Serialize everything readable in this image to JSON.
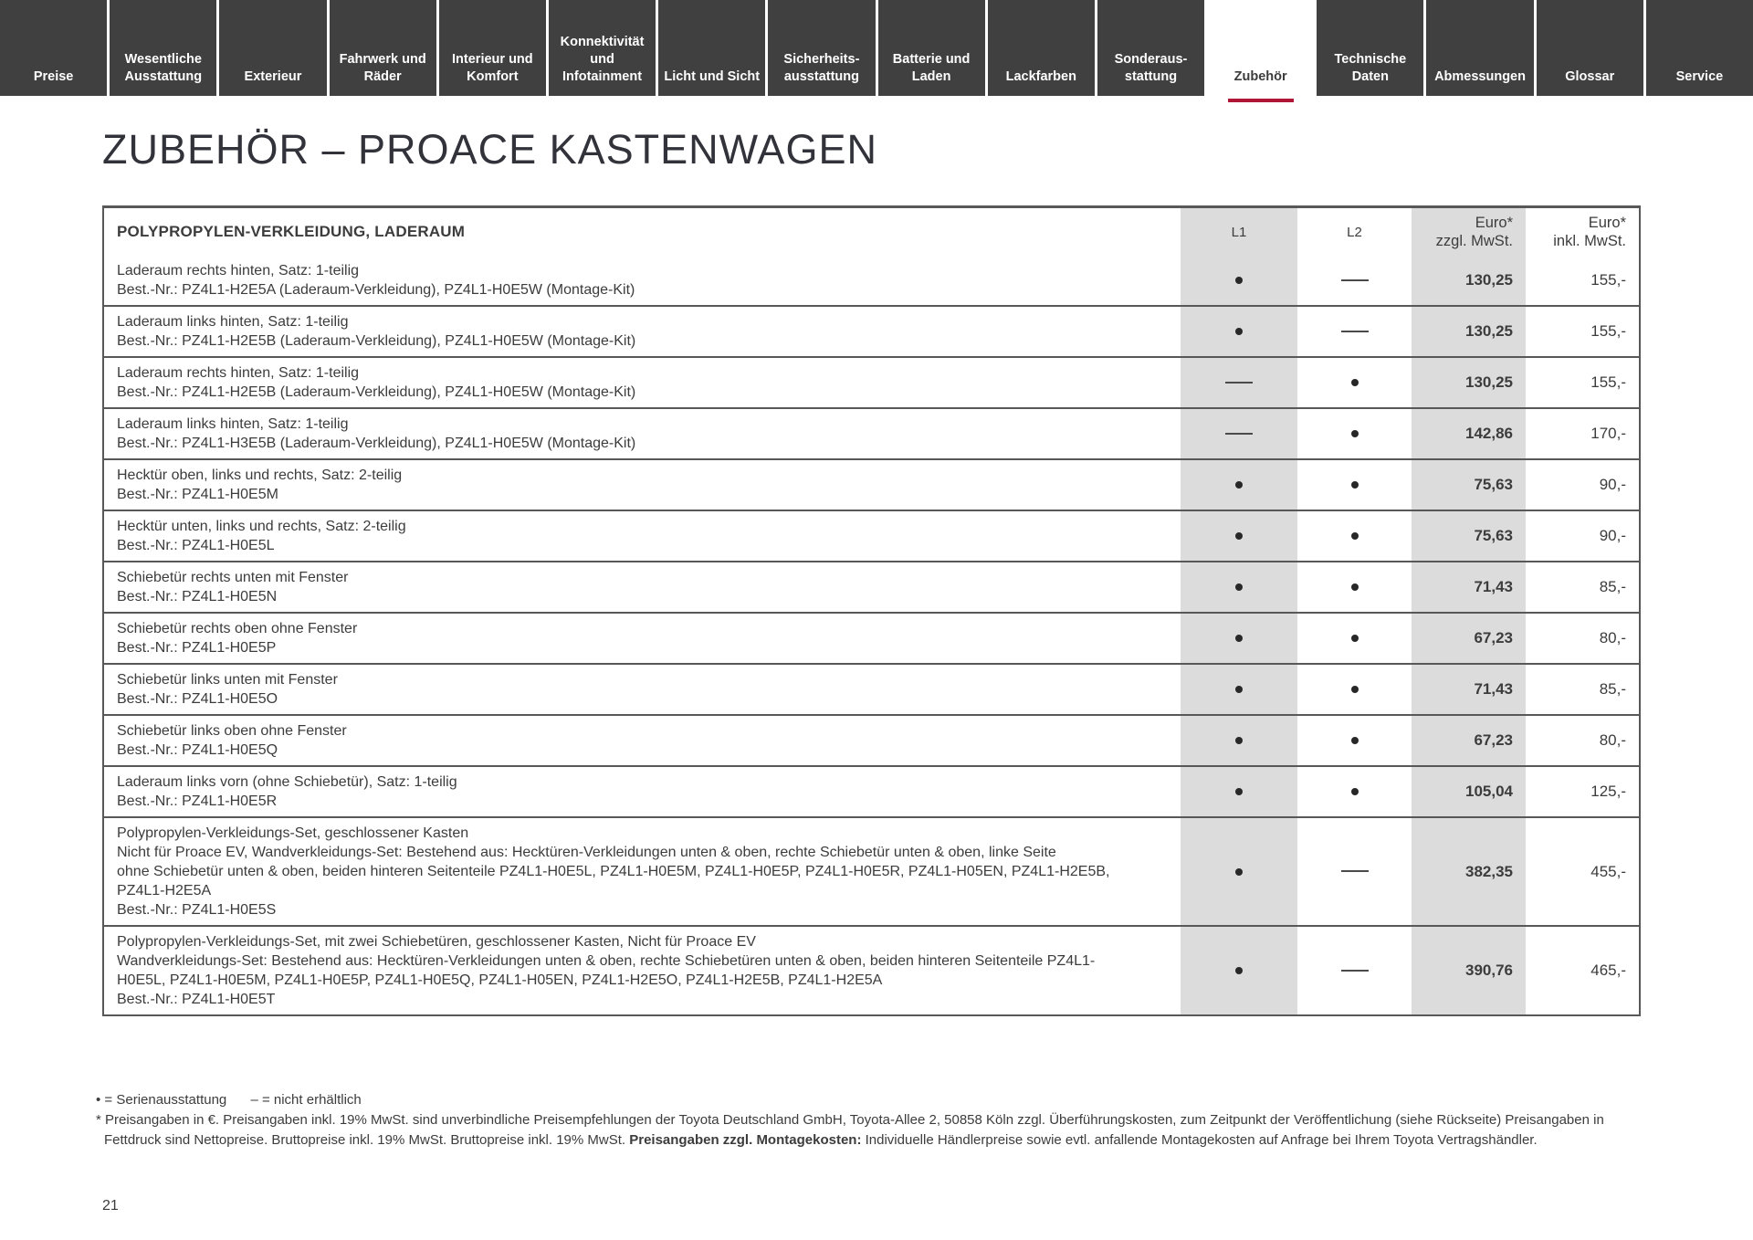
{
  "page": {
    "title": "ZUBEHÖR – PROACE KASTENWAGEN",
    "number": "21"
  },
  "colors": {
    "tab_background": "#404040",
    "active_tab_underline": "#b01635",
    "shaded_column": "#dcdcdc",
    "table_border": "#585858"
  },
  "nav": {
    "tabs": [
      {
        "label": "Preise",
        "active": false
      },
      {
        "label": "Wesentliche Ausstattung",
        "active": false
      },
      {
        "label": "Exterieur",
        "active": false
      },
      {
        "label": "Fahrwerk und Räder",
        "active": false
      },
      {
        "label": "Interieur und Komfort",
        "active": false
      },
      {
        "label": "Konnektivität und Infotainment",
        "active": false
      },
      {
        "label": "Licht und Sicht",
        "active": false
      },
      {
        "label": "Sicherheits- ausstattung",
        "active": false
      },
      {
        "label": "Batterie und Laden",
        "active": false
      },
      {
        "label": "Lackfarben",
        "active": false
      },
      {
        "label": "Sonderaus- stattung",
        "active": false
      },
      {
        "label": "Zubehör",
        "active": true
      },
      {
        "label": "Technische Daten",
        "active": false
      },
      {
        "label": "Abmessungen",
        "active": false
      },
      {
        "label": "Glossar",
        "active": false
      },
      {
        "label": "Service",
        "active": false
      }
    ]
  },
  "table": {
    "section_header": "POLYPROPYLEN-VERKLEIDUNG, LADERAUM",
    "columns": {
      "l1": "L1",
      "l2": "L2",
      "net_line1": "Euro*",
      "net_line2": "zzgl. MwSt.",
      "gross_line1": "Euro*",
      "gross_line2": "inkl. MwSt."
    },
    "rows": [
      {
        "lines": [
          "Laderaum rechts hinten, Satz: 1-teilig",
          "Best.-Nr.: PZ4L1-H2E5A (Laderaum-Verkleidung), PZ4L1-H0E5W (Montage-Kit)"
        ],
        "l1": "•",
        "l2": "—",
        "net": "130,25",
        "gross": "155,-"
      },
      {
        "lines": [
          "Laderaum links hinten, Satz: 1-teilig",
          "Best.-Nr.: PZ4L1-H2E5B (Laderaum-Verkleidung), PZ4L1-H0E5W (Montage-Kit)"
        ],
        "l1": "•",
        "l2": "—",
        "net": "130,25",
        "gross": "155,-"
      },
      {
        "lines": [
          "Laderaum rechts hinten, Satz: 1-teilig",
          "Best.-Nr.: PZ4L1-H2E5B (Laderaum-Verkleidung), PZ4L1-H0E5W (Montage-Kit)"
        ],
        "l1": "—",
        "l2": "•",
        "net": "130,25",
        "gross": "155,-"
      },
      {
        "lines": [
          "Laderaum links hinten, Satz: 1-teilig",
          "Best.-Nr.: PZ4L1-H3E5B (Laderaum-Verkleidung), PZ4L1-H0E5W (Montage-Kit)"
        ],
        "l1": "—",
        "l2": "•",
        "net": "142,86",
        "gross": "170,-"
      },
      {
        "lines": [
          "Hecktür oben, links und rechts, Satz: 2-teilig",
          "Best.-Nr.: PZ4L1-H0E5M"
        ],
        "l1": "•",
        "l2": "•",
        "net": "75,63",
        "gross": "90,-"
      },
      {
        "lines": [
          "Hecktür unten, links und rechts, Satz: 2-teilig",
          "Best.-Nr.: PZ4L1-H0E5L"
        ],
        "l1": "•",
        "l2": "•",
        "net": "75,63",
        "gross": "90,-"
      },
      {
        "lines": [
          "Schiebetür rechts unten mit Fenster",
          "Best.-Nr.: PZ4L1-H0E5N"
        ],
        "l1": "•",
        "l2": "•",
        "net": "71,43",
        "gross": "85,-"
      },
      {
        "lines": [
          "Schiebetür rechts oben ohne Fenster",
          "Best.-Nr.: PZ4L1-H0E5P"
        ],
        "l1": "•",
        "l2": "•",
        "net": "67,23",
        "gross": "80,-"
      },
      {
        "lines": [
          "Schiebetür links unten mit Fenster",
          "Best.-Nr.: PZ4L1-H0E5O"
        ],
        "l1": "•",
        "l2": "•",
        "net": "71,43",
        "gross": "85,-"
      },
      {
        "lines": [
          "Schiebetür links oben ohne Fenster",
          "Best.-Nr.: PZ4L1-H0E5Q"
        ],
        "l1": "•",
        "l2": "•",
        "net": "67,23",
        "gross": "80,-"
      },
      {
        "lines": [
          "Laderaum links vorn (ohne Schiebetür), Satz: 1-teilig",
          "Best.-Nr.: PZ4L1-H0E5R"
        ],
        "l1": "•",
        "l2": "•",
        "net": "105,04",
        "gross": "125,-"
      },
      {
        "lines": [
          "Polypropylen-Verkleidungs-Set, geschlossener Kasten",
          "Nicht für Proace EV, Wandverkleidungs-Set: Bestehend aus: Hecktüren-Verkleidungen unten & oben, rechte Schiebetür unten & oben, linke Seite",
          "ohne Schiebetür unten & oben, beiden hinteren Seitenteile PZ4L1-H0E5L, PZ4L1-H0E5M, PZ4L1-H0E5P, PZ4L1-H0E5R, PZ4L1-H05EN, PZ4L1-H2E5B,",
          "PZ4L1-H2E5A",
          "Best.-Nr.: PZ4L1-H0E5S"
        ],
        "l1": "•",
        "l2": "—",
        "net": "382,35",
        "gross": "455,-"
      },
      {
        "lines": [
          "Polypropylen-Verkleidungs-Set, mit zwei Schiebetüren, geschlossener Kasten, Nicht für Proace EV",
          "Wandverkleidungs-Set: Bestehend aus: Hecktüren-Verkleidungen unten & oben, rechte Schiebetüren unten & oben, beiden hinteren Seitenteile PZ4L1-",
          "H0E5L, PZ4L1-H0E5M, PZ4L1-H0E5P, PZ4L1-H0E5Q, PZ4L1-H05EN, PZ4L1-H2E5O, PZ4L1-H2E5B, PZ4L1-H2E5A",
          "Best.-Nr.: PZ4L1-H0E5T"
        ],
        "l1": "•",
        "l2": "—",
        "net": "390,76",
        "gross": "465,-"
      }
    ]
  },
  "footnotes": {
    "legend_dot": "• = Serienausstattung",
    "legend_dash": "– = nicht erhältlich",
    "line2": "* Preisangaben in €. Preisangaben inkl. 19% MwSt. sind unverbindliche Preisempfehlungen der Toyota Deutschland GmbH, Toyota-Allee 2, 50858 Köln zzgl. Überführungskosten, zum Zeitpunkt der Veröffentlichung (siehe Rückseite) Preisangaben in",
    "line3_pre": "Fettdruck sind Nettopreise. Bruttopreise inkl. 19% MwSt. Bruttopreise inkl. 19% MwSt. ",
    "line3_bold": "Preisangaben zzgl. Montagekosten:",
    "line3_post": " Individuelle Händlerpreise sowie evtl. anfallende Montagekosten auf Anfrage bei Ihrem Toyota Vertragshändler."
  }
}
